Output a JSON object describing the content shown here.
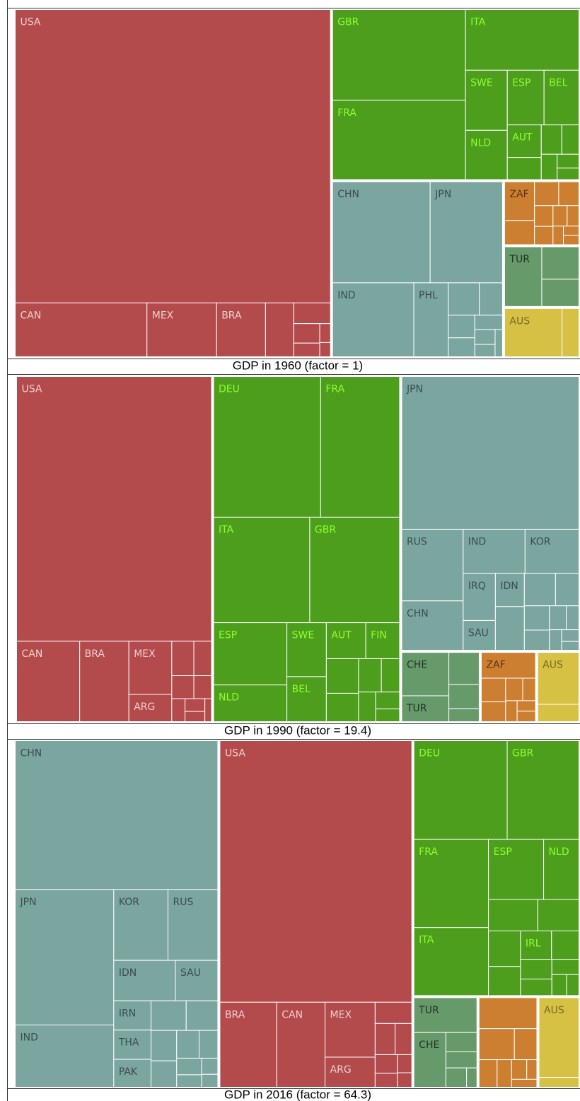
{
  "chart_data": [
    {
      "type": "treemap",
      "title": "GDP in 1960 (factor = 1)",
      "groups": [
        {
          "color": "#b34a4b",
          "label_color": "#f2cfcf",
          "categories": [
            "USA",
            "CAN",
            "MEX",
            "BRA",
            null,
            null,
            null,
            null,
            null,
            null
          ],
          "values": [
            182.6,
            14,
            7.4,
            5.2,
            3,
            1.5,
            1,
            0.7,
            0.4,
            0.3
          ]
        },
        {
          "color": "#4e9e1d",
          "label_color": "#8cff2e",
          "categories": [
            "GBR",
            "FRA",
            "ITA",
            "SWE",
            "NLD",
            "ESP",
            "BEL",
            "AUT",
            null,
            null,
            null,
            null,
            null,
            null
          ],
          "values": [
            24,
            21,
            13.7,
            5,
            4.1,
            4,
            3.8,
            2.2,
            1.5,
            1.2,
            1,
            0.8,
            0.6,
            0.5
          ]
        },
        {
          "color": "#7ba6a0",
          "label_color": "#3b4d4a",
          "categories": [
            "CHN",
            "JPN",
            "IND",
            "PHL",
            null,
            null,
            null,
            null,
            null,
            null,
            null,
            null
          ],
          "values": [
            19.7,
            14.6,
            12,
            5.1,
            2,
            1.5,
            1.2,
            1,
            0.8,
            0.6,
            0.5,
            0.4
          ]
        },
        {
          "color": "#cd7f31",
          "label_color": "#5c3210",
          "categories": [
            "ZAF",
            null,
            null,
            null,
            null,
            null,
            null,
            null,
            null,
            null,
            null
          ],
          "values": [
            2.4,
            1.5,
            1.2,
            1,
            0.8,
            0.7,
            0.6,
            0.5,
            0.4,
            0.3,
            0.3
          ]
        },
        {
          "color": "#669a6a",
          "label_color": "#233326",
          "categories": [
            "TUR",
            null,
            null
          ],
          "values": [
            4.6,
            2.5,
            2.1
          ]
        },
        {
          "color": "#d7c145",
          "label_color": "#7a6a20",
          "categories": [
            "AUS",
            null
          ],
          "values": [
            5.8,
            1.7
          ]
        }
      ]
    },
    {
      "type": "treemap",
      "title": "GDP in 1990 (factor = 19.4)",
      "groups": [
        {
          "color": "#b34a4b",
          "label_color": "#f2cfcf",
          "categories": [
            "USA",
            "CAN",
            "BRA",
            "MEX",
            "ARG",
            null,
            null,
            null,
            null,
            null,
            null,
            null,
            null
          ],
          "values": [
            101.7,
            10,
            7.8,
            4.5,
            2.3,
            1.5,
            1.2,
            1,
            0.8,
            0.6,
            0.5,
            0.4,
            0.3
          ]
        },
        {
          "color": "#4e9e1d",
          "label_color": "#8cff2e",
          "categories": [
            "DEU",
            "FRA",
            "ITA",
            "GBR",
            "ESP",
            "NLD",
            "SWE",
            "BEL",
            "AUT",
            "FIN",
            null,
            null,
            null,
            null,
            null,
            null,
            null
          ],
          "values": [
            29.7,
            21.9,
            20,
            18.7,
            9,
            5.3,
            4.2,
            3.5,
            2.8,
            2.4,
            2.2,
            1.8,
            1.5,
            1.2,
            1,
            0.8,
            0.6
          ]
        },
        {
          "color": "#7ba6a0",
          "label_color": "#3b4d4a",
          "categories": [
            "JPN",
            "RUS",
            "CHN",
            "IND",
            "KOR",
            "IRQ",
            "SAU",
            "IDN",
            null,
            null,
            null,
            null,
            null,
            null,
            null,
            null,
            null,
            null
          ],
          "values": [
            53.5,
            8.7,
            6,
            5.4,
            4.7,
            3,
            1.9,
            1.9,
            2.5,
            2,
            1.5,
            1.2,
            1,
            0.8,
            0.6,
            0.5,
            0.4,
            0.3
          ]
        },
        {
          "color": "#669a6a",
          "label_color": "#233326",
          "categories": [
            "CHE",
            "TUR",
            null,
            null,
            null
          ],
          "values": [
            4.2,
            2.5,
            2,
            1.5,
            0.8
          ]
        },
        {
          "color": "#cd7f31",
          "label_color": "#5c3210",
          "categories": [
            "ZAF",
            null,
            null,
            null,
            null,
            null,
            null,
            null
          ],
          "values": [
            2.9,
            1.2,
            1,
            0.8,
            0.6,
            0.5,
            0.4,
            0.4
          ]
        },
        {
          "color": "#d7c145",
          "label_color": "#7a6a20",
          "categories": [
            "AUS",
            null
          ],
          "values": [
            4.5,
            1.5
          ]
        }
      ]
    },
    {
      "type": "treemap",
      "title": "GDP in 2016 (factor = 64.3)",
      "groups": [
        {
          "color": "#7ba6a0",
          "label_color": "#3b4d4a",
          "categories": [
            "CHN",
            "JPN",
            "IND",
            "KOR",
            "RUS",
            "IDN",
            "SAU",
            "IRN",
            "THA",
            "PAK",
            null,
            null,
            null,
            null,
            null,
            null,
            null,
            null,
            null,
            null
          ],
          "values": [
            58,
            25.7,
            11.8,
            7.4,
            6.8,
            4.8,
            3.3,
            2.1,
            2.1,
            2,
            2,
            1.8,
            1.5,
            1.3,
            1.2,
            1,
            0.8,
            0.6,
            0.5,
            0.4
          ]
        },
        {
          "color": "#b34a4b",
          "label_color": "#f2cfcf",
          "categories": [
            "USA",
            "BRA",
            "CAN",
            "MEX",
            "ARG",
            null,
            null,
            null,
            null,
            null,
            null,
            null
          ],
          "values": [
            96.6,
            9.3,
            7.9,
            5.3,
            2.9,
            1.5,
            1.2,
            1,
            0.8,
            0.6,
            0.5,
            0.4
          ]
        },
        {
          "color": "#4e9e1d",
          "label_color": "#8cff2e",
          "categories": [
            "DEU",
            "GBR",
            "FRA",
            "ITA",
            "ESP",
            "NLD",
            null,
            null,
            null,
            null,
            "IRL",
            null,
            null,
            null,
            null,
            null,
            null
          ],
          "values": [
            17.8,
            13.7,
            12.7,
            9.8,
            6.4,
            4.1,
            3,
            2.5,
            2.2,
            1.8,
            1.7,
            1.5,
            1.2,
            1,
            0.8,
            0.6,
            0.5
          ]
        },
        {
          "color": "#669a6a",
          "label_color": "#233326",
          "categories": [
            "TUR",
            "CHE",
            null,
            null,
            null,
            null
          ],
          "values": [
            4.4,
            3.5,
            1.2,
            1,
            0.8,
            0.4
          ]
        },
        {
          "color": "#cd7f31",
          "label_color": "#5c3210",
          "categories": [
            null,
            null,
            null,
            null,
            null,
            null,
            null,
            null
          ],
          "values": [
            3.6,
            2.2,
            1.4,
            1,
            0.8,
            0.6,
            0.4,
            0.4
          ]
        },
        {
          "color": "#d7c145",
          "label_color": "#7a6a20",
          "categories": [
            "AUS",
            null
          ],
          "values": [
            6.5,
            0.8
          ]
        }
      ]
    }
  ]
}
